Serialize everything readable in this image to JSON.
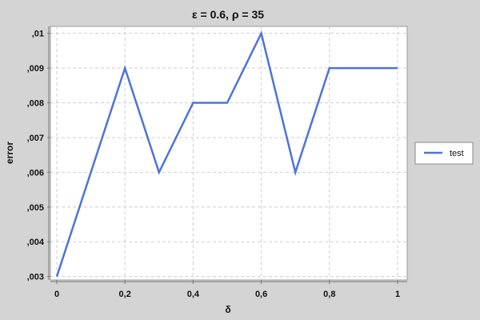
{
  "chart_data": {
    "type": "line",
    "title": "ε = 0.6, ρ = 35",
    "xlabel": "δ",
    "ylabel": "error",
    "xlim": [
      0,
      1
    ],
    "ylim": [
      0.0029,
      0.0102
    ],
    "x_ticks": [
      0,
      0.2,
      0.4,
      0.6,
      0.8,
      1
    ],
    "x_tick_labels": [
      "0",
      "0,2",
      "0,4",
      "0,6",
      "0,8",
      "1"
    ],
    "y_ticks": [
      0.003,
      0.004,
      0.005,
      0.006,
      0.007,
      0.008,
      0.009,
      0.01
    ],
    "y_tick_labels": [
      ",003",
      ",004",
      ",005",
      ",006",
      ",007",
      ",008",
      ",009",
      ",01"
    ],
    "grid": true,
    "legend_position": "right",
    "series": [
      {
        "name": "test",
        "color": "#4f73d9",
        "x": [
          0,
          0.1,
          0.2,
          0.3,
          0.4,
          0.5,
          0.6,
          0.7,
          0.8,
          0.9,
          1.0
        ],
        "y": [
          0.003,
          0.006,
          0.009,
          0.006,
          0.008,
          0.008,
          0.01,
          0.006,
          0.009,
          0.009,
          0.009
        ]
      }
    ]
  }
}
